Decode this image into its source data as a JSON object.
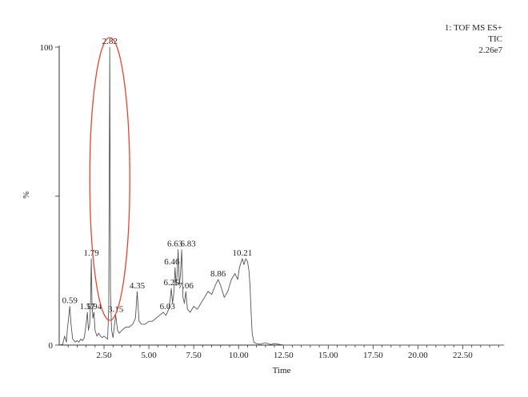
{
  "info": {
    "line1": "1: TOF MS ES+",
    "line2": "TIC",
    "line3": "2.26e7"
  },
  "chart_data": {
    "type": "line",
    "xlabel": "Time",
    "ylabel": "%",
    "xlim": [
      0,
      24.8
    ],
    "ylim": [
      0,
      100
    ],
    "x_ticks": [
      "2.50",
      "5.00",
      "7.50",
      "10.00",
      "12.50",
      "15.00",
      "17.50",
      "20.00",
      "22.50"
    ],
    "x_tick_values": [
      2.5,
      5.0,
      7.5,
      10.0,
      12.5,
      15.0,
      17.5,
      20.0,
      22.5
    ],
    "y_ticks": [
      "0",
      "100"
    ],
    "y_tick_values": [
      0,
      100
    ],
    "highlight": {
      "type": "ellipse",
      "peak": "2.82",
      "color": "#e8432d"
    },
    "peaks": [
      {
        "label": "0.59",
        "x": 0.59,
        "y": 13
      },
      {
        "label": "1.57",
        "x": 1.57,
        "y": 11
      },
      {
        "label": "1.79",
        "x": 1.79,
        "y": 29
      },
      {
        "label": "1.94",
        "x": 1.94,
        "y": 11
      },
      {
        "label": "2.82",
        "x": 2.82,
        "y": 100
      },
      {
        "label": "3.15",
        "x": 3.15,
        "y": 10
      },
      {
        "label": "4.35",
        "x": 4.35,
        "y": 18
      },
      {
        "label": "6.03",
        "x": 6.03,
        "y": 11
      },
      {
        "label": "6.25",
        "x": 6.25,
        "y": 19
      },
      {
        "label": "6.46",
        "x": 6.46,
        "y": 26
      },
      {
        "label": "6.63",
        "x": 6.63,
        "y": 32
      },
      {
        "label": "6.83",
        "x": 6.83,
        "y": 32
      },
      {
        "label": "7.06",
        "x": 7.06,
        "y": 18
      },
      {
        "label": "8.86",
        "x": 8.86,
        "y": 22
      },
      {
        "label": "10.21",
        "x": 10.21,
        "y": 29
      }
    ],
    "series": [
      {
        "x": [
          0.0,
          0.2,
          0.3,
          0.4,
          0.45,
          0.52,
          0.59,
          0.66,
          0.75,
          0.9,
          1.0,
          1.1,
          1.2,
          1.3,
          1.4,
          1.5,
          1.57,
          1.63,
          1.7,
          1.75,
          1.79,
          1.83,
          1.88,
          1.94,
          2.0,
          2.1,
          2.2,
          2.3,
          2.4,
          2.5,
          2.6,
          2.7,
          2.76,
          2.82,
          2.86,
          2.92,
          3.0,
          3.07,
          3.15,
          3.25,
          3.35,
          3.5,
          3.7,
          3.9,
          4.1,
          4.25,
          4.35,
          4.45,
          4.6,
          4.8,
          5.0,
          5.2,
          5.4,
          5.6,
          5.8,
          5.95,
          6.03,
          6.1,
          6.18,
          6.25,
          6.32,
          6.4,
          6.46,
          6.52,
          6.58,
          6.63,
          6.7,
          6.76,
          6.83,
          6.9,
          6.98,
          7.06,
          7.15,
          7.3,
          7.5,
          7.7,
          7.9,
          8.1,
          8.3,
          8.5,
          8.7,
          8.86,
          9.0,
          9.2,
          9.4,
          9.6,
          9.8,
          9.95,
          10.05,
          10.15,
          10.21,
          10.3,
          10.4,
          10.5,
          10.58,
          10.64,
          10.7,
          10.76,
          10.85,
          11.0,
          11.2,
          11.5,
          11.8,
          12.0,
          12.5,
          24.8
        ],
        "y": [
          0,
          0.3,
          3,
          1,
          5,
          9,
          13,
          7,
          2,
          1,
          1.5,
          1,
          2,
          1.5,
          2.5,
          7,
          11,
          5,
          7,
          14,
          29,
          14,
          9,
          11,
          5,
          3,
          4,
          3,
          2.5,
          3,
          2.5,
          2,
          12,
          100,
          18,
          5,
          2.5,
          6,
          10,
          5,
          4,
          5,
          6,
          6,
          7,
          9,
          18,
          8,
          7,
          7,
          8,
          8,
          9,
          10,
          11,
          10,
          11,
          12,
          15,
          19,
          14,
          18,
          26,
          20,
          24,
          32,
          20,
          24,
          32,
          16,
          14,
          18,
          12,
          11,
          13,
          12,
          14,
          16,
          18,
          17,
          20,
          22,
          20,
          16,
          18,
          22,
          24,
          22,
          26,
          28,
          29,
          27,
          29,
          28,
          25,
          20,
          11,
          4,
          1,
          0.5,
          0.3,
          0.8,
          0.2,
          0.5,
          0,
          0
        ]
      }
    ]
  }
}
